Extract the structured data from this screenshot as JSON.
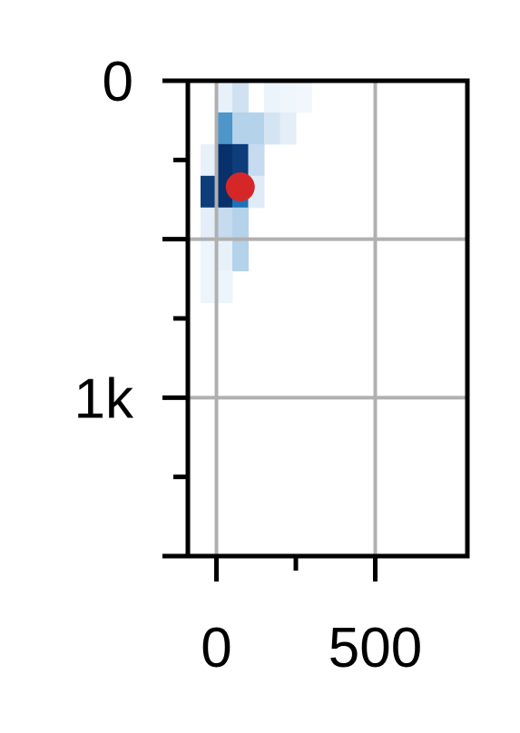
{
  "chart_data": {
    "type": "heatmap",
    "title": "",
    "xlabel": "",
    "ylabel": "",
    "xlim": [
      -90,
      790
    ],
    "ylim": [
      1500,
      0
    ],
    "y_inverted": true,
    "grid": true,
    "x_ticks": [
      {
        "value": 0,
        "label": "0"
      },
      {
        "value": 250,
        "label": ""
      },
      {
        "value": 500,
        "label": "500"
      }
    ],
    "y_ticks": [
      {
        "value": 0,
        "label": "0"
      },
      {
        "value": 250,
        "label": ""
      },
      {
        "value": 500,
        "label": ""
      },
      {
        "value": 750,
        "label": ""
      },
      {
        "value": 1000,
        "label": "1k"
      },
      {
        "value": 1250,
        "label": ""
      },
      {
        "value": 1500,
        "label": ""
      }
    ],
    "colormap": "Blues",
    "bin_size": [
      50,
      100
    ],
    "cells": [
      {
        "x": 25,
        "y": 50,
        "v": 0.08
      },
      {
        "x": 75,
        "y": 50,
        "v": 0.2
      },
      {
        "x": 175,
        "y": 50,
        "v": 0.06
      },
      {
        "x": 225,
        "y": 50,
        "v": 0.04
      },
      {
        "x": 275,
        "y": 50,
        "v": 0.03
      },
      {
        "x": 25,
        "y": 150,
        "v": 0.6
      },
      {
        "x": 75,
        "y": 150,
        "v": 0.3
      },
      {
        "x": 125,
        "y": 150,
        "v": 0.3
      },
      {
        "x": 175,
        "y": 150,
        "v": 0.18
      },
      {
        "x": 225,
        "y": 150,
        "v": 0.1
      },
      {
        "x": -25,
        "y": 250,
        "v": 0.08
      },
      {
        "x": 25,
        "y": 250,
        "v": 1.0
      },
      {
        "x": 75,
        "y": 250,
        "v": 0.95
      },
      {
        "x": 125,
        "y": 250,
        "v": 0.25
      },
      {
        "x": -25,
        "y": 350,
        "v": 0.95
      },
      {
        "x": 25,
        "y": 350,
        "v": 1.0
      },
      {
        "x": 75,
        "y": 350,
        "v": 0.75
      },
      {
        "x": 125,
        "y": 350,
        "v": 0.12
      },
      {
        "x": -25,
        "y": 450,
        "v": 0.1
      },
      {
        "x": 25,
        "y": 450,
        "v": 0.25
      },
      {
        "x": 75,
        "y": 450,
        "v": 0.3
      },
      {
        "x": -25,
        "y": 550,
        "v": 0.05
      },
      {
        "x": 25,
        "y": 550,
        "v": 0.08
      },
      {
        "x": 75,
        "y": 550,
        "v": 0.3
      },
      {
        "x": -25,
        "y": 650,
        "v": 0.05
      },
      {
        "x": 25,
        "y": 650,
        "v": 0.05
      }
    ],
    "marker": {
      "x": 75,
      "y": 335,
      "color": "#d62728"
    },
    "colors": {
      "grid": "#b0b0b0",
      "axis": "#000000",
      "marker": "#d62728"
    }
  }
}
